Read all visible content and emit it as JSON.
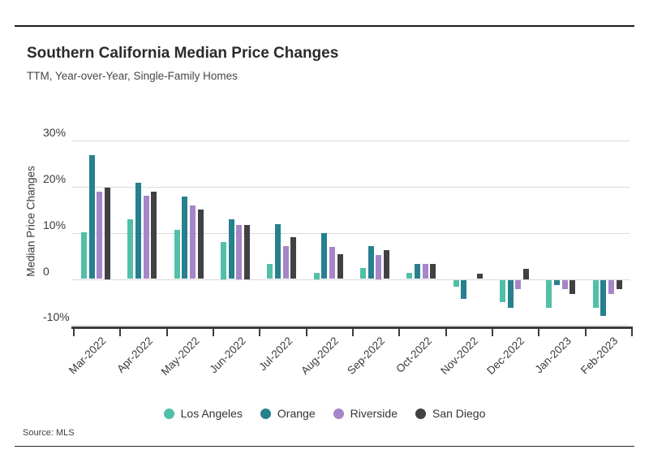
{
  "header": {
    "title": "Southern California Median Price Changes",
    "subtitle": "TTM, Year-over-Year, Single-Family Homes"
  },
  "source": {
    "label": "Source: MLS"
  },
  "chart_data": {
    "type": "bar",
    "title": "Southern California Median Price Changes",
    "subtitle": "TTM, Year-over-Year, Single-Family Homes",
    "xlabel": "",
    "ylabel": "Median Price Changes",
    "ylim": [
      -10,
      30
    ],
    "grid": "horizontal",
    "legend_position": "bottom-center",
    "yticks": [
      {
        "value": 30,
        "label": "30%"
      },
      {
        "value": 20,
        "label": "20%"
      },
      {
        "value": 10,
        "label": "10%"
      },
      {
        "value": 0,
        "label": "0"
      },
      {
        "value": -10,
        "label": "-10%"
      }
    ],
    "categories": [
      "Mar-2022",
      "Apr-2022",
      "May-2022",
      "Jun-2022",
      "Jul-2022",
      "Aug-2022",
      "Sep-2022",
      "Oct-2022",
      "Nov-2022",
      "Dec-2022",
      "Jan-2023",
      "Feb-2023"
    ],
    "series": [
      {
        "name": "Los Angeles",
        "color": "#52BFA9",
        "values": [
          10.1,
          12.9,
          10.7,
          8.1,
          3.2,
          1.4,
          2.3,
          1.3,
          -1.4,
          -4.9,
          -6.1,
          -6.0
        ]
      },
      {
        "name": "Orange",
        "color": "#27808E",
        "values": [
          26.8,
          20.8,
          17.8,
          12.9,
          11.9,
          9.9,
          7.1,
          3.2,
          -4.1,
          -6.1,
          -1.2,
          -7.9
        ]
      },
      {
        "name": "Riverside",
        "color": "#A685C9",
        "values": [
          18.9,
          18.0,
          16.0,
          11.8,
          7.2,
          7.0,
          5.2,
          3.2,
          0.0,
          -2.1,
          -2.1,
          -3.0
        ]
      },
      {
        "name": "San Diego",
        "color": "#414043",
        "values": [
          19.9,
          18.9,
          15.0,
          11.7,
          9.1,
          5.3,
          6.2,
          3.2,
          1.1,
          2.2,
          -3.0,
          -2.1
        ]
      }
    ],
    "source_note": "Source: MLS"
  }
}
